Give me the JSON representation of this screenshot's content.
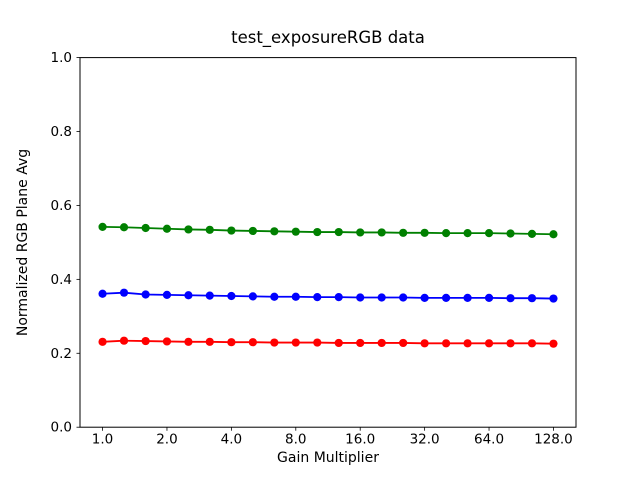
{
  "chart_data": {
    "type": "line",
    "title": "test_exposureRGB data",
    "xlabel": "Gain Multiplier",
    "ylabel": "Normalized RGB Plane Avg",
    "x_scale": "log2",
    "grid": false,
    "legend": null,
    "ylim": [
      0.0,
      1.0
    ],
    "xlim_log2": [
      -0.35,
      7.35
    ],
    "x_ticks": [
      1.0,
      2.0,
      4.0,
      8.0,
      16.0,
      32.0,
      64.0,
      128.0
    ],
    "x_tick_labels": [
      "1.0",
      "2.0",
      "4.0",
      "8.0",
      "16.0",
      "32.0",
      "64.0",
      "128.0"
    ],
    "y_ticks": [
      0.0,
      0.2,
      0.4,
      0.6,
      0.8,
      1.0
    ],
    "y_tick_labels": [
      "0.0",
      "0.2",
      "0.4",
      "0.6",
      "0.8",
      "1.0"
    ],
    "x": [
      1.0,
      1.26,
      1.59,
      2.0,
      2.52,
      3.17,
      4.0,
      5.04,
      6.35,
      8.0,
      10.08,
      12.7,
      16.0,
      20.16,
      25.4,
      32.0,
      40.32,
      50.8,
      64.0,
      80.63,
      101.59,
      128.0
    ],
    "series": [
      {
        "name": "green",
        "color": "#008000",
        "marker": "o",
        "values": [
          0.542,
          0.541,
          0.539,
          0.537,
          0.535,
          0.534,
          0.532,
          0.531,
          0.53,
          0.529,
          0.528,
          0.528,
          0.527,
          0.527,
          0.526,
          0.526,
          0.525,
          0.525,
          0.525,
          0.524,
          0.523,
          0.522
        ]
      },
      {
        "name": "blue",
        "color": "#0000ff",
        "marker": "o",
        "values": [
          0.361,
          0.364,
          0.359,
          0.358,
          0.357,
          0.356,
          0.355,
          0.354,
          0.353,
          0.353,
          0.352,
          0.352,
          0.351,
          0.351,
          0.351,
          0.35,
          0.35,
          0.35,
          0.35,
          0.349,
          0.349,
          0.348
        ]
      },
      {
        "name": "red",
        "color": "#ff0000",
        "marker": "o",
        "values": [
          0.231,
          0.234,
          0.233,
          0.232,
          0.231,
          0.231,
          0.23,
          0.23,
          0.229,
          0.229,
          0.229,
          0.228,
          0.228,
          0.228,
          0.228,
          0.227,
          0.227,
          0.227,
          0.227,
          0.227,
          0.227,
          0.226
        ]
      }
    ]
  }
}
